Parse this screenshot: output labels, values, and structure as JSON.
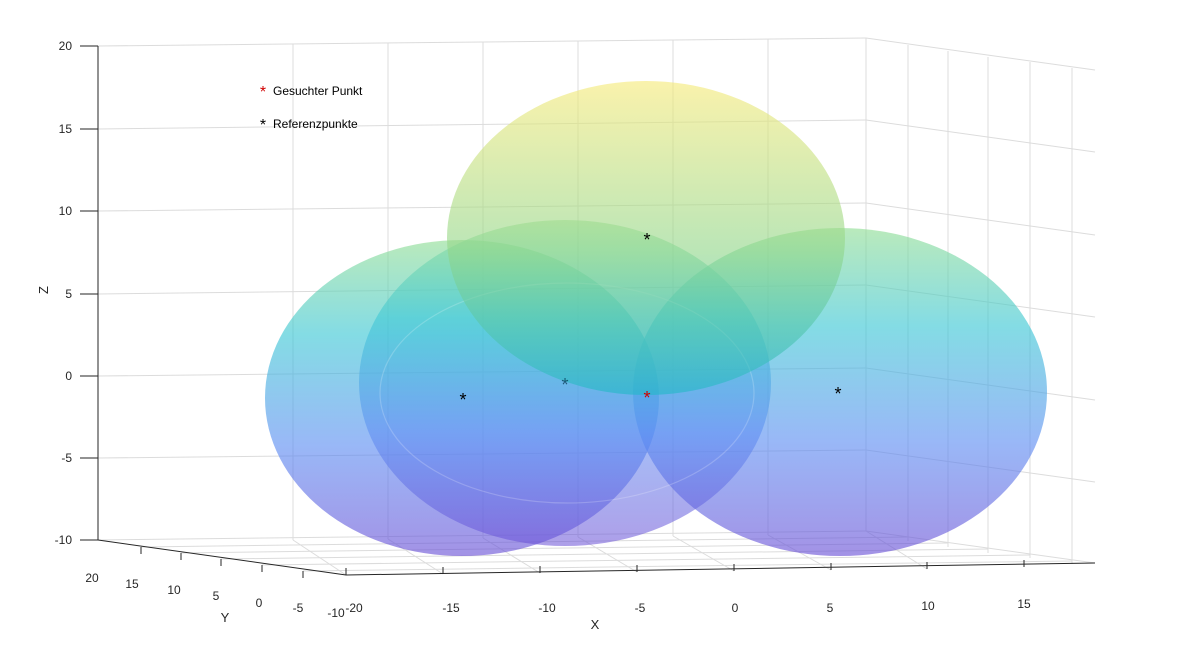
{
  "chart_data": {
    "type": "scatter3d",
    "title": "",
    "xlabel": "X",
    "ylabel": "Y",
    "zlabel": "Z",
    "xlim": [
      -20,
      20
    ],
    "ylim": [
      -10,
      20
    ],
    "zlim": [
      -10,
      20
    ],
    "x_ticks": [
      "-20",
      "-15",
      "-10",
      "-5",
      "0",
      "5",
      "10",
      "15"
    ],
    "y_ticks": [
      "20",
      "15",
      "10",
      "5",
      "0",
      "-5",
      "-10"
    ],
    "z_ticks": [
      "20",
      "15",
      "10",
      "5",
      "0",
      "-5",
      "-10"
    ],
    "grid": true,
    "legend_position": "top-left",
    "series": [
      {
        "name": "Gesuchter Punkt",
        "color": "#d00000",
        "marker": "*",
        "points": [
          [
            0,
            0,
            0
          ]
        ]
      },
      {
        "name": "Referenzpunkte",
        "color": "#000000",
        "marker": "*",
        "points": [
          [
            -10,
            5,
            0
          ],
          [
            10,
            -5,
            0
          ],
          [
            0,
            0,
            10
          ],
          [
            -5,
            -5,
            0
          ]
        ]
      }
    ],
    "spheres": [
      {
        "center": [
          -10,
          5,
          0
        ],
        "radius": 11
      },
      {
        "center": [
          10,
          -5,
          0
        ],
        "radius": 11
      },
      {
        "center": [
          0,
          0,
          10
        ],
        "radius": 11
      },
      {
        "center": [
          -5,
          -5,
          0
        ],
        "radius": 11
      }
    ],
    "colormap": "parula"
  }
}
